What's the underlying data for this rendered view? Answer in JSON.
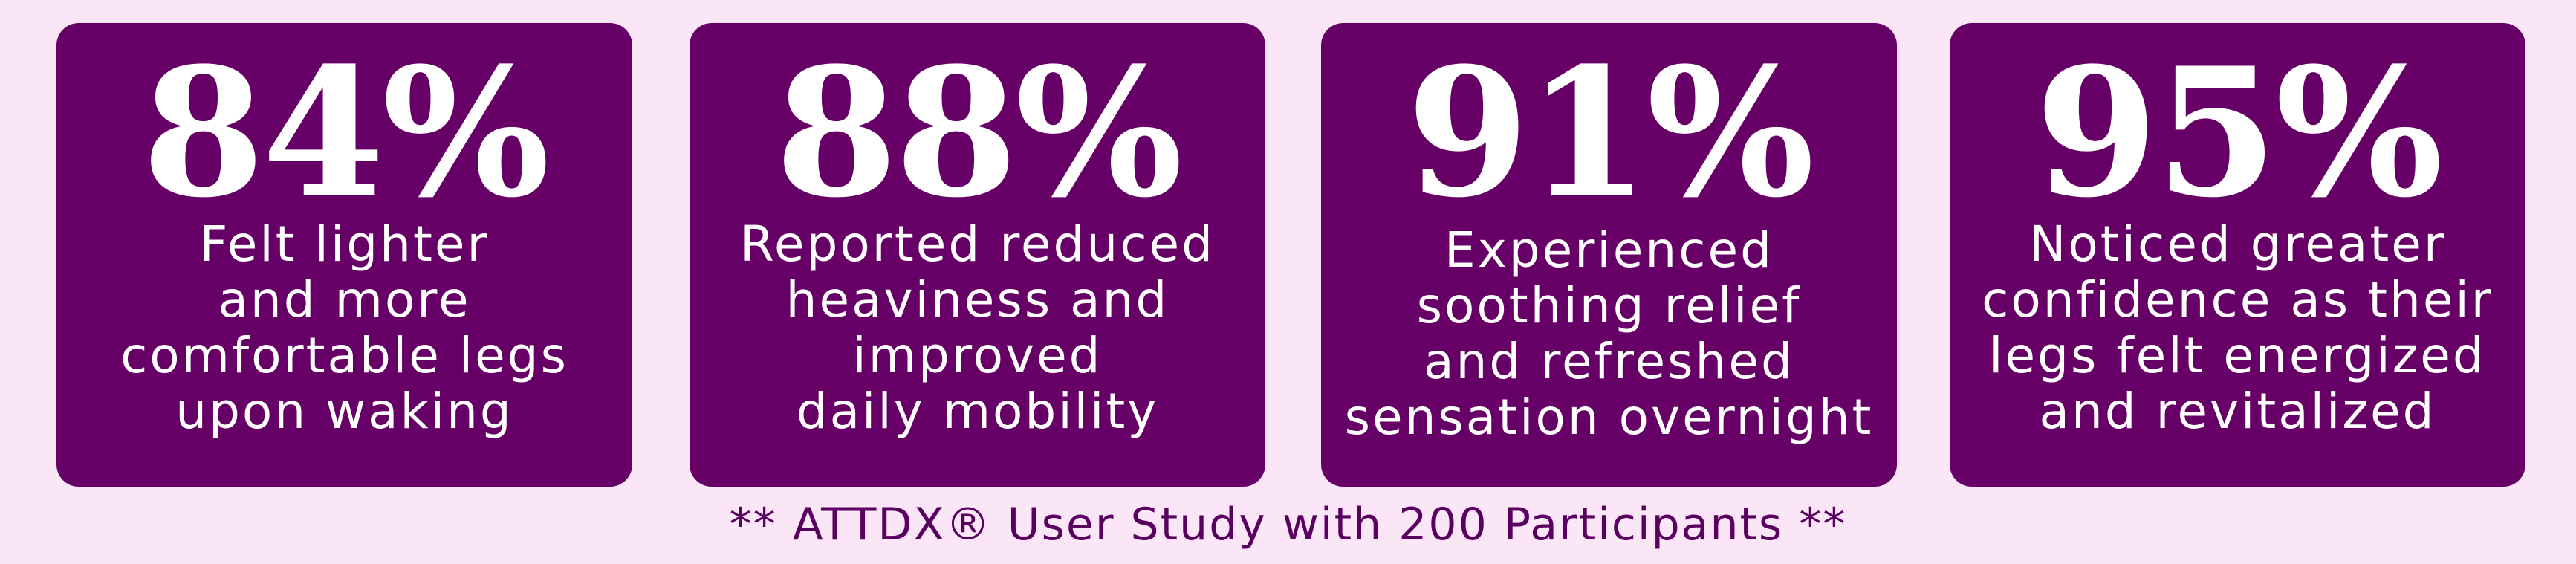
{
  "cards": [
    {
      "percent": "84%",
      "lines": [
        "Felt lighter",
        "and more",
        "comfortable legs",
        "upon waking"
      ]
    },
    {
      "percent": "88%",
      "lines": [
        "Reported reduced",
        "heaviness and",
        "improved",
        "daily mobility"
      ]
    },
    {
      "percent": "91%",
      "lines": [
        "Experienced",
        "soothing relief",
        "and refreshed",
        "sensation overnight"
      ]
    },
    {
      "percent": "95%",
      "lines": [
        "Noticed greater",
        "confidence as their",
        "legs felt energized",
        "and revitalized"
      ]
    }
  ],
  "footnote": "** ATTDX® User Study with 200 Participants **",
  "colors": {
    "background": "#fbe6f8",
    "card": "#660066",
    "card_text": "#ffffff",
    "footnote_text": "#5a0060"
  }
}
